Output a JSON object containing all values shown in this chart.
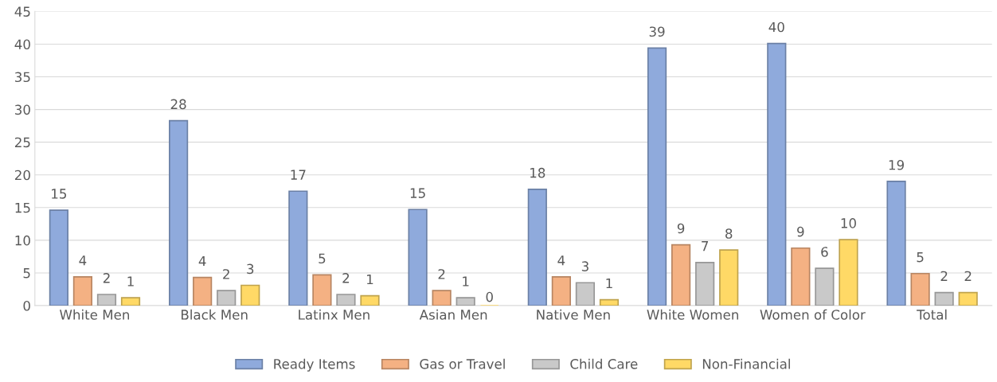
{
  "chart_data": {
    "type": "bar",
    "categories": [
      "White Men",
      "Black Men",
      "Latinx Men",
      "Asian Men",
      "Native Men",
      "White Women",
      "Women of Color",
      "Total"
    ],
    "series": [
      {
        "name": "Ready Items",
        "color": "#8faadc",
        "values": [
          14.6,
          28.3,
          17.5,
          14.7,
          17.8,
          39.4,
          40.1,
          19.0
        ],
        "value_labels": [
          "15",
          "28",
          "17",
          "15",
          "18",
          "39",
          "40",
          "19"
        ]
      },
      {
        "name": "Gas or Travel",
        "color": "#f4b183",
        "values": [
          4.4,
          4.3,
          4.7,
          2.3,
          4.4,
          9.3,
          8.8,
          4.9
        ],
        "value_labels": [
          "4",
          "4",
          "5",
          "2",
          "4",
          "9",
          "9",
          "5"
        ]
      },
      {
        "name": "Child Care",
        "color": "#c9c9c9",
        "values": [
          1.7,
          2.3,
          1.7,
          1.2,
          3.5,
          6.6,
          5.7,
          2.0
        ],
        "value_labels": [
          "2",
          "2",
          "2",
          "1",
          "3",
          "7",
          "6",
          "2"
        ]
      },
      {
        "name": "Non-Financial",
        "color": "#ffd966",
        "values": [
          1.2,
          3.1,
          1.5,
          0,
          0.9,
          8.5,
          10.1,
          2.0
        ],
        "value_labels": [
          "1",
          "3",
          "1",
          "0",
          "1",
          "8",
          "10",
          "2"
        ]
      }
    ],
    "ylim": [
      0,
      45
    ],
    "yticks": [
      0,
      5,
      10,
      15,
      20,
      25,
      30,
      35,
      40,
      45
    ],
    "grid": "y",
    "legend": "bottom"
  }
}
